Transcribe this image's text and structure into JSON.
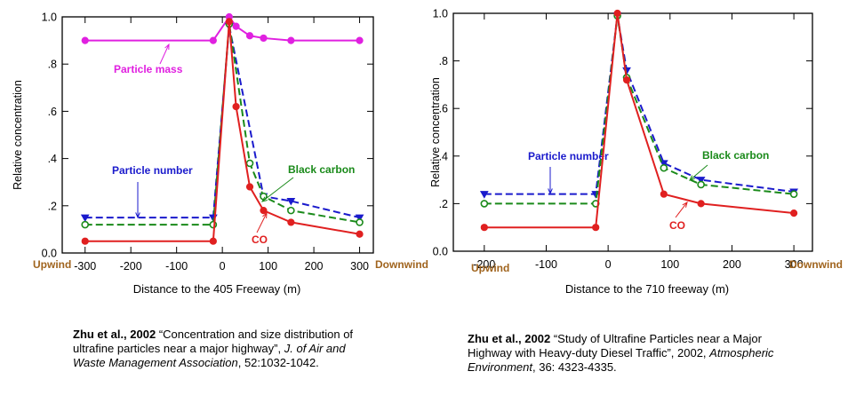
{
  "chart_data": [
    {
      "type": "line",
      "xlabel": "Distance to the 405 Freeway (m)",
      "ylabel": "Relative concentration",
      "xlim": [
        -350,
        330
      ],
      "ylim": [
        0,
        1.0
      ],
      "x_ticks": [
        "-300",
        "-200",
        "-100",
        "0",
        "100",
        "200",
        "300"
      ],
      "x_tick_values": [
        -300,
        -200,
        -100,
        0,
        100,
        200,
        300
      ],
      "y_ticks": [
        "0.0",
        ".2",
        ".4",
        ".6",
        ".8",
        "1.0"
      ],
      "y_tick_values": [
        0,
        0.2,
        0.4,
        0.6,
        0.8,
        1.0
      ],
      "upwind_label": "Upwind",
      "downwind_label": "Downwind",
      "grid": false,
      "series": [
        {
          "name": "Particle mass",
          "color": "#e020e0",
          "style": "solid",
          "marker": "filled",
          "x": [
            -300,
            -20,
            15,
            30,
            60,
            90,
            150,
            300
          ],
          "y": [
            0.9,
            0.9,
            1.0,
            0.96,
            0.92,
            0.91,
            0.9,
            0.9
          ]
        },
        {
          "name": "Particle number",
          "color": "#1a1acc",
          "style": "dashed",
          "marker": "triangle",
          "x": [
            -300,
            -20,
            15,
            90,
            150,
            300
          ],
          "y": [
            0.15,
            0.15,
            0.96,
            0.24,
            0.22,
            0.15
          ]
        },
        {
          "name": "Black carbon",
          "color": "#1a8a1a",
          "style": "dashed",
          "marker": "open",
          "x": [
            -300,
            -20,
            15,
            60,
            90,
            150,
            300
          ],
          "y": [
            0.12,
            0.12,
            0.97,
            0.38,
            0.24,
            0.18,
            0.13
          ]
        },
        {
          "name": "CO",
          "color": "#e02020",
          "style": "solid",
          "marker": "filled",
          "x": [
            -300,
            -20,
            15,
            30,
            60,
            90,
            150,
            300
          ],
          "y": [
            0.05,
            0.05,
            0.98,
            0.62,
            0.28,
            0.18,
            0.13,
            0.08
          ]
        }
      ]
    },
    {
      "type": "line",
      "xlabel": "Distance to the 710 freeway (m)",
      "ylabel": "Relative concentration",
      "xlim": [
        -250,
        330
      ],
      "ylim": [
        0,
        1.0
      ],
      "x_ticks": [
        "-200",
        "-100",
        "0",
        "100",
        "200",
        "300"
      ],
      "x_tick_values": [
        -200,
        -100,
        0,
        100,
        200,
        300
      ],
      "y_ticks": [
        "0.0",
        ".2",
        ".4",
        ".6",
        ".8",
        "1.0"
      ],
      "y_tick_values": [
        0,
        0.2,
        0.4,
        0.6,
        0.8,
        1.0
      ],
      "upwind_label": "Upwind",
      "downwind_label": "Downwind",
      "grid": false,
      "series": [
        {
          "name": "Particle number",
          "color": "#1a1acc",
          "style": "dashed",
          "marker": "triangle",
          "x": [
            -200,
            -20,
            15,
            30,
            90,
            150,
            300
          ],
          "y": [
            0.24,
            0.24,
            0.99,
            0.76,
            0.37,
            0.3,
            0.25
          ]
        },
        {
          "name": "Black carbon",
          "color": "#1a8a1a",
          "style": "dashed",
          "marker": "open",
          "x": [
            -200,
            -20,
            15,
            30,
            90,
            150,
            300
          ],
          "y": [
            0.2,
            0.2,
            0.99,
            0.73,
            0.35,
            0.28,
            0.24
          ]
        },
        {
          "name": "CO",
          "color": "#e02020",
          "style": "solid",
          "marker": "filled",
          "x": [
            -200,
            -20,
            15,
            30,
            90,
            150,
            300
          ],
          "y": [
            0.1,
            0.1,
            1.0,
            0.72,
            0.24,
            0.2,
            0.16
          ]
        }
      ]
    }
  ],
  "references": {
    "left": {
      "authors": "Zhu et al., 2002",
      "title": " “Concentration and size distribution of ultrafine particles near a major highway”, ",
      "journal": "J. of Air and Waste Management Association",
      "details": ", 52:1032-1042."
    },
    "right": {
      "authors": "Zhu et al., 2002",
      "title": " “Study of Ultrafine Particles near a Major Highway with Heavy-duty Diesel Traffic”, 2002, ",
      "journal": "Atmospheric Environment",
      "details": ", 36: 4323-4335."
    }
  }
}
